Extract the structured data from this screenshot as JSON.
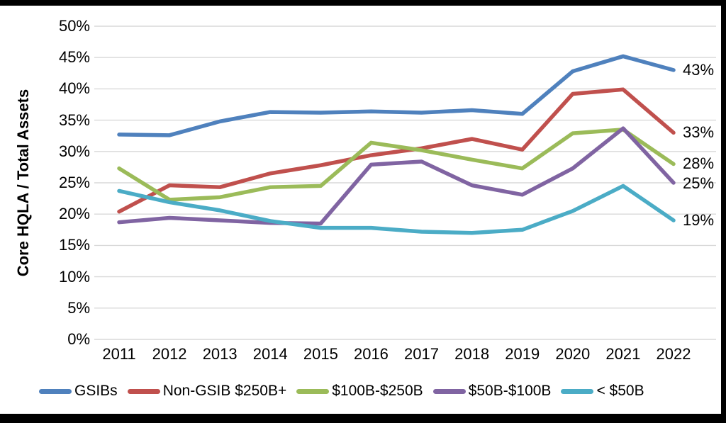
{
  "figure": {
    "background": "#ffffff",
    "frame_color": "#000000",
    "gridline_color": "#d9d9d9",
    "text_color": "#000000"
  },
  "chart_data": {
    "type": "line",
    "title": "",
    "xlabel": "",
    "ylabel": "Core HQLA / Total Assets",
    "ylim": [
      0,
      50
    ],
    "ytick_step": 5,
    "ytick_labels": [
      "0%",
      "5%",
      "10%",
      "15%",
      "20%",
      "25%",
      "30%",
      "35%",
      "40%",
      "45%",
      "50%"
    ],
    "grid": "horizontal",
    "legend_position": "bottom",
    "categories": [
      "2011",
      "2012",
      "2013",
      "2014",
      "2015",
      "2016",
      "2017",
      "2018",
      "2019",
      "2020",
      "2021",
      "2022"
    ],
    "series": [
      {
        "name": "GSIBs",
        "color": "#4F81BD",
        "end_label": "43%",
        "values": [
          32.7,
          32.6,
          34.8,
          36.3,
          36.2,
          36.4,
          36.2,
          36.6,
          36.0,
          42.8,
          45.2,
          43.0
        ]
      },
      {
        "name": "Non-GSIB $250B+",
        "color": "#C0504D",
        "end_label": "33%",
        "values": [
          20.4,
          24.6,
          24.3,
          26.5,
          27.8,
          29.4,
          30.5,
          32.0,
          30.3,
          39.2,
          39.9,
          33.0
        ]
      },
      {
        "name": "$100B-$250B",
        "color": "#9BBB59",
        "end_label": "28%",
        "values": [
          27.3,
          22.3,
          22.7,
          24.3,
          24.5,
          31.4,
          30.2,
          28.7,
          27.3,
          32.9,
          33.5,
          28.0
        ]
      },
      {
        "name": "$50B-$100B",
        "color": "#8064A2",
        "end_label": "25%",
        "values": [
          18.7,
          19.4,
          19.0,
          18.6,
          18.5,
          27.9,
          28.4,
          24.6,
          23.1,
          27.3,
          33.7,
          25.0
        ]
      },
      {
        "name": "< $50B",
        "color": "#4BACC6",
        "end_label": "19%",
        "values": [
          23.7,
          21.9,
          20.6,
          18.9,
          17.8,
          17.8,
          17.2,
          17.0,
          17.5,
          20.5,
          24.5,
          19.0
        ]
      }
    ]
  }
}
